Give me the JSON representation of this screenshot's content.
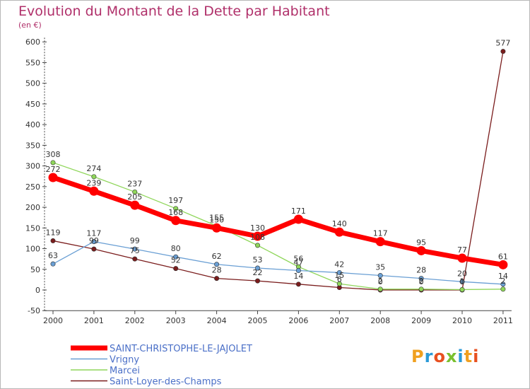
{
  "title": "Evolution du Montant de la Dette par Habitant",
  "unit": "(en €)",
  "logo": "Proxiti",
  "chart_data": {
    "type": "line",
    "x": [
      "2000",
      "2001",
      "2002",
      "2003",
      "2004",
      "2005",
      "2006",
      "2007",
      "2008",
      "2009",
      "2010",
      "2011"
    ],
    "ylim": [
      -50,
      600
    ],
    "yticks": [
      -50,
      0,
      50,
      100,
      150,
      200,
      250,
      300,
      350,
      400,
      450,
      500,
      550,
      600
    ],
    "grid": false,
    "legend_position": "bottom-left",
    "series": [
      {
        "name": "SAINT-CHRISTOPHE-LE-JAJOLET",
        "color": "#ff0000",
        "values": [
          272,
          239,
          205,
          168,
          150,
          130,
          171,
          140,
          117,
          95,
          77,
          61
        ]
      },
      {
        "name": "Vrigny",
        "color": "#6a9fd4",
        "values": [
          63,
          117,
          99,
          80,
          62,
          53,
          47,
          42,
          35,
          28,
          20,
          14
        ]
      },
      {
        "name": "Marcei",
        "color": "#8fd65a",
        "values": [
          308,
          274,
          237,
          197,
          155,
          108,
          56,
          15,
          2,
          2,
          1,
          2
        ]
      },
      {
        "name": "Saint-Loyer-des-Champs",
        "color": "#7a1c1c",
        "values": [
          119,
          99,
          75,
          52,
          28,
          22,
          14,
          6,
          0,
          0,
          0,
          577
        ]
      }
    ]
  }
}
